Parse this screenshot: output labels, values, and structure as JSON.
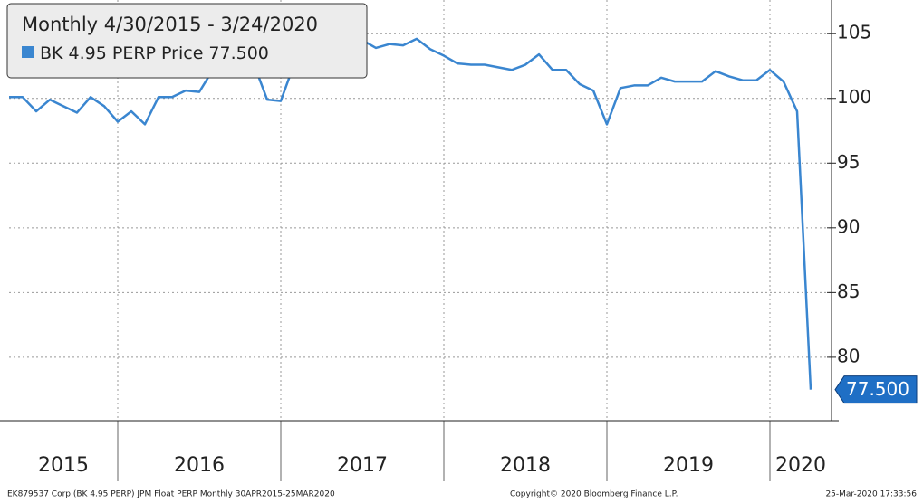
{
  "chart_data": {
    "type": "line",
    "title": "Monthly 4/30/2015 - 3/24/2020",
    "x_labels": [
      "2015",
      "2016",
      "2017",
      "2018",
      "2019",
      "2020"
    ],
    "series": [
      {
        "name": "BK 4.95 PERP Price",
        "color": "#3a86d0",
        "values": [
          100.1,
          100.1,
          99.0,
          99.9,
          99.4,
          98.9,
          100.1,
          99.4,
          98.2,
          99.0,
          98.0,
          100.1,
          100.1,
          100.6,
          100.5,
          102.2,
          102.3,
          102.1,
          102.7,
          99.9,
          99.8,
          102.7,
          103.3,
          103.4,
          104.4,
          104.4,
          104.5,
          103.9,
          104.2,
          104.1,
          104.6,
          103.8,
          103.3,
          102.7,
          102.6,
          102.6,
          102.4,
          102.2,
          102.6,
          103.4,
          102.2,
          102.2,
          101.1,
          100.6,
          98.0,
          100.8,
          101.0,
          101.0,
          101.6,
          101.3,
          101.3,
          101.3,
          102.1,
          101.7,
          101.4,
          101.4,
          102.2,
          101.3,
          99.0,
          77.5
        ],
        "value_labels": [
          null,
          null,
          null,
          null,
          null,
          null,
          null,
          null,
          null,
          null,
          null,
          null,
          null,
          null,
          null,
          null,
          null,
          null,
          null,
          null,
          null,
          null,
          null,
          null,
          null,
          null,
          null,
          null,
          null,
          null,
          null,
          null,
          null,
          null,
          null,
          null,
          null,
          null,
          null,
          null,
          null,
          null,
          null,
          null,
          null,
          null,
          null,
          null,
          null,
          null,
          null,
          null,
          null,
          null,
          null,
          null,
          null,
          null,
          null,
          "77.500"
        ]
      }
    ],
    "ylim": [
      75.1,
      107.6
    ],
    "yticks": [
      80,
      85,
      90,
      95,
      100,
      105
    ],
    "grid": true,
    "footer": [
      "EK879537 Corp (BK 4.95 PERP) JPM Float PERP  Monthly 30APR2015-25MAR2020",
      "Copyright© 2020 Bloomberg Finance L.P.",
      "25-Mar-2020 17:33:56"
    ]
  }
}
